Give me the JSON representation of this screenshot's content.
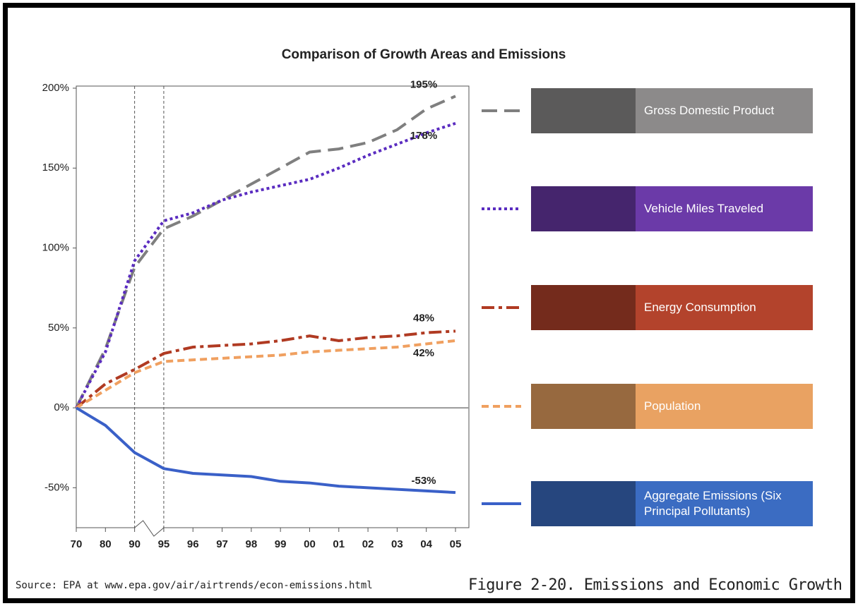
{
  "chart_data": {
    "type": "line",
    "title": "Comparison of Growth Areas and Emissions",
    "categories": [
      "70",
      "80",
      "90",
      "95",
      "96",
      "97",
      "98",
      "99",
      "00",
      "01",
      "02",
      "03",
      "04",
      "05"
    ],
    "ylim": [
      -75,
      200
    ],
    "yticks": [
      {
        "value": -50,
        "label": "-50%"
      },
      {
        "value": 0,
        "label": "0%"
      },
      {
        "value": 50,
        "label": "50%"
      },
      {
        "value": 100,
        "label": "100%"
      },
      {
        "value": 150,
        "label": "150%"
      },
      {
        "value": 200,
        "label": "200%"
      }
    ],
    "series": [
      {
        "name": "Gross Domestic Product",
        "color": "#7f7f7f",
        "box_color": "#8c8a8a",
        "style": "dashed",
        "values": [
          0,
          37,
          88,
          112,
          120,
          130,
          140,
          150,
          160,
          162,
          166,
          174,
          187,
          195
        ],
        "value_labels": [
          null,
          null,
          null,
          null,
          null,
          null,
          null,
          null,
          null,
          null,
          null,
          null,
          null,
          "195%"
        ]
      },
      {
        "name": "Vehicle Miles Traveled",
        "color": "#5a2cc0",
        "box_color": "#6b3aa8",
        "style": "dotted",
        "values": [
          0,
          35,
          92,
          117,
          122,
          130,
          135,
          139,
          143,
          150,
          158,
          165,
          172,
          178
        ],
        "value_labels": [
          null,
          null,
          null,
          null,
          null,
          null,
          null,
          null,
          null,
          null,
          null,
          null,
          null,
          "178%"
        ]
      },
      {
        "name": "Energy Consumption",
        "color": "#b03a22",
        "box_color": "#b3432c",
        "style": "dashdot",
        "values": [
          0,
          15,
          24,
          34,
          38,
          39,
          40,
          42,
          45,
          42,
          44,
          45,
          47,
          48
        ],
        "value_labels": [
          null,
          null,
          null,
          null,
          null,
          null,
          null,
          null,
          null,
          null,
          null,
          null,
          null,
          "48%"
        ]
      },
      {
        "name": "Population",
        "color": "#f0a060",
        "box_color": "#e9a262",
        "style": "shortdash",
        "values": [
          0,
          11,
          22,
          29,
          30,
          31,
          32,
          33,
          35,
          36,
          37,
          38,
          40,
          42
        ],
        "value_labels": [
          null,
          null,
          null,
          null,
          null,
          null,
          null,
          null,
          null,
          null,
          null,
          null,
          null,
          "42%"
        ]
      },
      {
        "name": "Aggregate Emissions (Six Principal Pollutants)",
        "color": "#3a60c8",
        "box_color": "#3b6cc2",
        "style": "solid",
        "values": [
          0,
          -11,
          -28,
          -38,
          -41,
          -42,
          -43,
          -46,
          -47,
          -49,
          -50,
          -51,
          -52,
          -53
        ],
        "value_labels": [
          null,
          null,
          null,
          null,
          null,
          null,
          null,
          null,
          null,
          null,
          null,
          null,
          null,
          "-53%"
        ]
      }
    ],
    "source": "Source: EPA at www.epa.gov/air/airtrends/econ-emissions.html",
    "caption": "Figure 2-20. Emissions and Economic Growth"
  }
}
